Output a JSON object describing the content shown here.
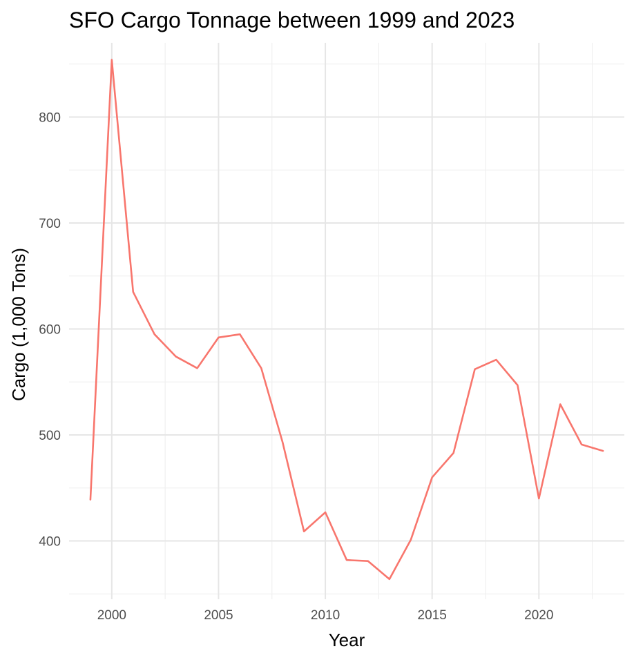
{
  "chart_data": {
    "type": "line",
    "title": "SFO Cargo Tonnage between 1999 and 2023",
    "xlabel": "Year",
    "ylabel": "Cargo (1,000 Tons)",
    "xlim": [
      1998,
      2024
    ],
    "ylim": [
      345,
      870
    ],
    "x_ticks": [
      2000,
      2005,
      2010,
      2015,
      2020
    ],
    "x_minor_ticks": [
      2002.5,
      2007.5,
      2012.5,
      2017.5,
      2022.5
    ],
    "y_ticks": [
      400,
      500,
      600,
      700,
      800
    ],
    "y_minor_ticks": [
      350,
      450,
      550,
      650,
      750,
      850
    ],
    "grid": true,
    "legend": "none",
    "line_color": "#F8766D",
    "series": [
      {
        "x": [
          1999,
          2000,
          2001,
          2002,
          2003,
          2004,
          2005,
          2006,
          2007,
          2008,
          2009,
          2010,
          2011,
          2012,
          2013,
          2014,
          2015,
          2016,
          2017,
          2018,
          2019,
          2020,
          2021,
          2022,
          2023
        ],
        "values": [
          439,
          854,
          635,
          595,
          574,
          563,
          592,
          595,
          563,
          493,
          409,
          427,
          382,
          381,
          364,
          401,
          460,
          483,
          562,
          571,
          547,
          440,
          529,
          491,
          485
        ]
      }
    ]
  }
}
